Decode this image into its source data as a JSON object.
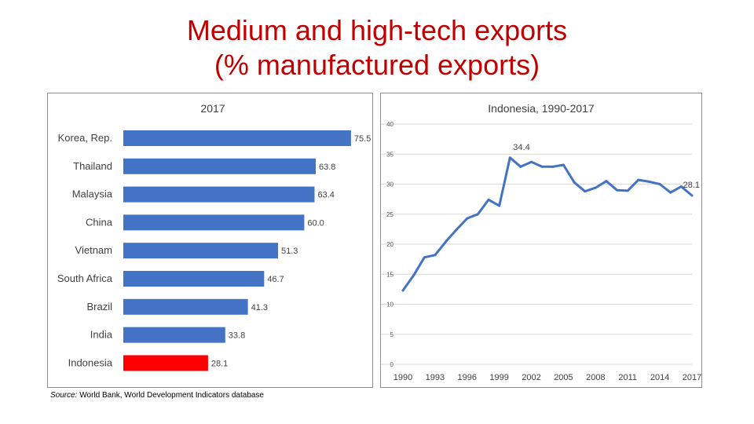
{
  "slide": {
    "title_line1": "Medium and high-tech exports",
    "title_line2": "(% manufactured exports)",
    "source_label": "Source:",
    "source_text": " World Bank, World Development Indicators database"
  },
  "colors": {
    "title": "#c00000",
    "bar": "#4472c4",
    "highlight_bar": "#ff0000",
    "line": "#4472c4"
  },
  "chart_data": [
    {
      "type": "bar",
      "orientation": "horizontal",
      "title": "2017",
      "categories": [
        "Korea, Rep.",
        "Thailand",
        "Malaysia",
        "China",
        "Vietnam",
        "South Africa",
        "Brazil",
        "India",
        "Indonesia"
      ],
      "values": [
        75.5,
        63.8,
        63.4,
        60.0,
        51.3,
        46.7,
        41.3,
        33.8,
        28.1
      ],
      "value_labels": [
        "75.5",
        "63.8",
        "63.4",
        "60.0",
        "51.3",
        "46.7",
        "41.3",
        "33.8",
        "28.1"
      ],
      "highlight": "Indonesia",
      "xlim": [
        0,
        80
      ]
    },
    {
      "type": "line",
      "title": "Indonesia, 1990-2017",
      "x": [
        1990,
        1991,
        1992,
        1993,
        1994,
        1995,
        1996,
        1997,
        1998,
        1999,
        2000,
        2001,
        2002,
        2003,
        2004,
        2005,
        2006,
        2007,
        2008,
        2009,
        2010,
        2011,
        2012,
        2013,
        2014,
        2015,
        2016,
        2017
      ],
      "y": [
        12.3,
        14.8,
        17.8,
        18.2,
        20.4,
        22.4,
        24.3,
        25.0,
        27.4,
        26.4,
        34.4,
        32.9,
        33.7,
        32.9,
        32.9,
        33.2,
        30.3,
        28.8,
        29.4,
        30.5,
        29.0,
        28.9,
        30.7,
        30.4,
        30.0,
        28.6,
        29.6,
        28.1
      ],
      "ylim": [
        0,
        40
      ],
      "y_ticks": [
        "0",
        "5",
        "10",
        "15",
        "20",
        "25",
        "30",
        "35",
        "40"
      ],
      "x_ticks": [
        "1990",
        "1993",
        "1996",
        "1999",
        "2002",
        "2005",
        "2008",
        "2011",
        "2014",
        "2017"
      ],
      "annotations": [
        {
          "x": 2000,
          "y": 34.4,
          "label": "34.4"
        },
        {
          "x": 2017,
          "y": 28.1,
          "label": "28.1"
        }
      ]
    }
  ]
}
